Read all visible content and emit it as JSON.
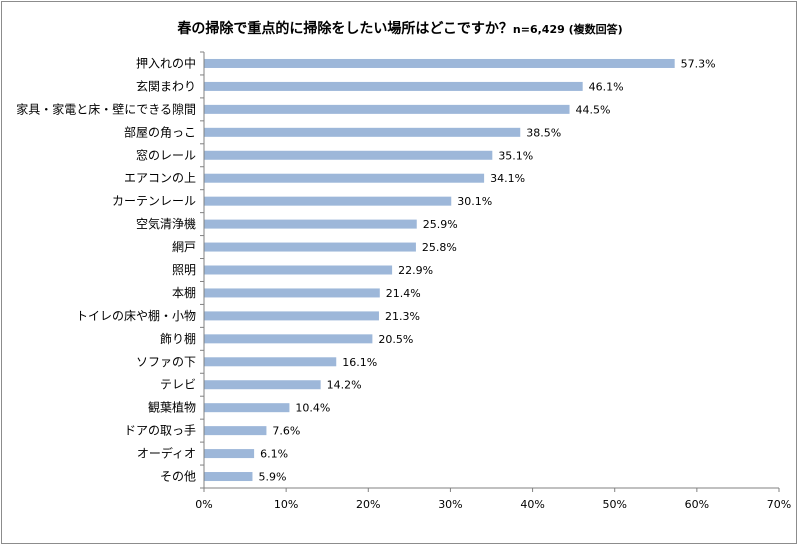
{
  "chart_data": {
    "type": "bar",
    "orientation": "horizontal",
    "title": "春の掃除で重点的に掃除をしたい場所はどこですか？",
    "subtitle": "n=6,429 (複数回答)",
    "categories": [
      "押入れの中",
      "玄関まわり",
      "家具・家電と床・壁にできる隙間",
      "部屋の角っこ",
      "窓のレール",
      "エアコンの上",
      "カーテンレール",
      "空気清浄機",
      "網戸",
      "照明",
      "本棚",
      "トイレの床や棚・小物",
      "飾り棚",
      "ソファの下",
      "テレビ",
      "観葉植物",
      "ドアの取っ手",
      "オーディオ",
      "その他"
    ],
    "values": [
      57.3,
      46.1,
      44.5,
      38.5,
      35.1,
      34.1,
      30.1,
      25.9,
      25.8,
      22.9,
      21.4,
      21.3,
      20.5,
      16.1,
      14.2,
      10.4,
      7.6,
      6.1,
      5.9
    ],
    "value_labels": [
      "57.3%",
      "46.1%",
      "44.5%",
      "38.5%",
      "35.1%",
      "34.1%",
      "30.1%",
      "25.9%",
      "25.8%",
      "22.9%",
      "21.4%",
      "21.3%",
      "20.5%",
      "16.1%",
      "14.2%",
      "10.4%",
      "7.6%",
      "6.1%",
      "5.9%"
    ],
    "xlim": [
      0,
      70
    ],
    "xticks": [
      0,
      10,
      20,
      30,
      40,
      50,
      60,
      70
    ],
    "xtick_labels": [
      "0%",
      "10%",
      "20%",
      "30%",
      "40%",
      "50%",
      "60%",
      "70%"
    ],
    "grid": false,
    "legend": "none",
    "bar_color": "#9db7d9"
  }
}
